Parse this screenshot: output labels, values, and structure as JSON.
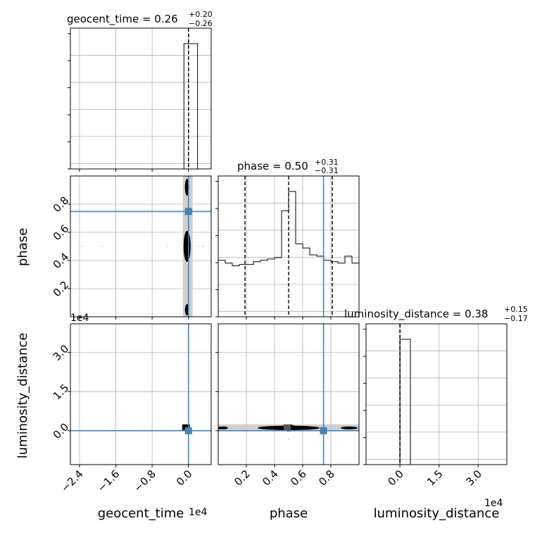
{
  "chart_data": {
    "type": "corner",
    "parameters": [
      "geocent_time",
      "phase",
      "luminosity_distance"
    ],
    "titles": {
      "geocent_time": {
        "name": "geocent_time",
        "median": "0.26",
        "plus": "+0.20",
        "minus": "−0.26"
      },
      "phase": {
        "name": "phase",
        "median": "0.50",
        "plus": "+0.31",
        "minus": "−0.31"
      },
      "luminosity_distance": {
        "name": "luminosity_distance",
        "median": "0.38",
        "plus": "+0.15",
        "minus": "−0.17"
      }
    },
    "axis_labels": {
      "x": [
        "geocent_time",
        "phase",
        "luminosity_distance"
      ],
      "y": [
        "phase",
        "luminosity_distance"
      ]
    },
    "offset_text": {
      "col0_x": "1e4",
      "col2_x": "1e4",
      "row2_y": "1e4"
    },
    "ranges": {
      "geocent_time": [
        -2.6,
        0.5
      ],
      "phase": [
        0.0,
        1.0
      ],
      "luminosity_distance": [
        -1.3,
        4.1
      ]
    },
    "ticks": {
      "geocent_time": {
        "values": [
          -2.4,
          -1.6,
          -0.8,
          0.0
        ],
        "labels": [
          "−2.4",
          "−1.6",
          "−0.8",
          "0.0"
        ]
      },
      "phase": {
        "values": [
          0.2,
          0.4,
          0.6,
          0.8
        ],
        "labels": [
          "0.2",
          "0.4",
          "0.6",
          "0.8"
        ]
      },
      "luminosity_distance": {
        "values": [
          0.0,
          1.5,
          3.0
        ],
        "labels": [
          "0.0",
          "1.5",
          "3.0"
        ]
      }
    },
    "truths": {
      "geocent_time": 0.0,
      "phase": 0.748,
      "luminosity_distance": 0.0
    },
    "quantiles": {
      "geocent_time": [
        0.0,
        0.0,
        0.0
      ],
      "phase": [
        0.19,
        0.5,
        0.81
      ],
      "luminosity_distance": [
        0.0,
        0.0,
        0.0
      ]
    },
    "histograms": {
      "geocent_time": {
        "bin_edges": [
          -0.1,
          0.05,
          0.2
        ],
        "counts": [
          1.0,
          1.0
        ]
      },
      "phase": {
        "bin_edges": [
          0.0,
          0.05,
          0.1,
          0.15,
          0.2,
          0.25,
          0.3,
          0.35,
          0.4,
          0.45,
          0.5,
          0.55,
          0.6,
          0.65,
          0.7,
          0.75,
          0.8,
          0.85,
          0.9,
          0.95,
          1.0
        ],
        "counts": [
          0.41,
          0.39,
          0.37,
          0.38,
          0.38,
          0.4,
          0.41,
          0.42,
          0.43,
          0.77,
          0.91,
          0.53,
          0.5,
          0.45,
          0.44,
          0.41,
          0.4,
          0.39,
          0.44,
          0.39
        ]
      },
      "luminosity_distance": {
        "bin_edges": [
          0.0,
          0.4
        ],
        "counts": [
          1.0
        ]
      }
    },
    "grid": true
  }
}
